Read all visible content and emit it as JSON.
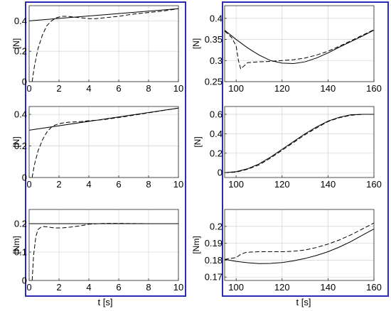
{
  "colors": {
    "frame": "#2b2bb8",
    "line": "#000000",
    "grid": "#d9d9d9",
    "axes_bg": "#ffffff"
  },
  "chart_data": [
    {
      "type": "line",
      "panel": "left-1",
      "xlabel": "",
      "ylabel": "[N]",
      "xlim": [
        0,
        10
      ],
      "ylim": [
        0,
        0.5
      ],
      "xticks": [
        0,
        2,
        4,
        6,
        8,
        10
      ],
      "yticks": [
        0,
        0.2,
        0.4
      ],
      "grid": true,
      "series": [
        {
          "style": "solid",
          "x": [
            0,
            10
          ],
          "y": [
            0.4,
            0.48
          ]
        },
        {
          "style": "dashed",
          "x": [
            0.2,
            0.35,
            0.6,
            0.9,
            1.2,
            1.5,
            1.8,
            2.2,
            2.6,
            3.0,
            3.5,
            4.0,
            4.5,
            5.0,
            6.0,
            7.0,
            8.0,
            9.0,
            10.0
          ],
          "y": [
            0.0,
            0.1,
            0.22,
            0.31,
            0.37,
            0.4,
            0.42,
            0.43,
            0.43,
            0.425,
            0.42,
            0.415,
            0.415,
            0.42,
            0.43,
            0.445,
            0.455,
            0.465,
            0.48
          ]
        }
      ]
    },
    {
      "type": "line",
      "panel": "right-1",
      "xlabel": "",
      "ylabel": "[N]",
      "xlim": [
        95,
        160
      ],
      "ylim": [
        0.25,
        0.43
      ],
      "xticks": [
        100,
        120,
        140,
        160
      ],
      "yticks": [
        0.25,
        0.3,
        0.35,
        0.4
      ],
      "grid": true,
      "series": [
        {
          "style": "solid",
          "x": [
            95,
            100,
            105,
            110,
            115,
            120,
            125,
            130,
            135,
            140,
            145,
            150,
            155,
            160
          ],
          "y": [
            0.372,
            0.35,
            0.33,
            0.313,
            0.3,
            0.294,
            0.293,
            0.297,
            0.306,
            0.318,
            0.332,
            0.345,
            0.358,
            0.372
          ]
        },
        {
          "style": "dashed",
          "x": [
            95,
            98,
            100,
            101,
            102,
            103,
            105,
            110,
            115,
            120,
            125,
            130,
            135,
            140,
            145,
            150,
            155,
            160
          ],
          "y": [
            0.37,
            0.355,
            0.335,
            0.3,
            0.28,
            0.285,
            0.295,
            0.297,
            0.298,
            0.3,
            0.302,
            0.306,
            0.313,
            0.322,
            0.334,
            0.347,
            0.36,
            0.373
          ]
        }
      ]
    },
    {
      "type": "line",
      "panel": "left-2",
      "xlabel": "",
      "ylabel": "[N]",
      "xlim": [
        0,
        10
      ],
      "ylim": [
        0,
        0.45
      ],
      "xticks": [
        0,
        2,
        4,
        6,
        8,
        10
      ],
      "yticks": [
        0,
        0.2,
        0.4
      ],
      "grid": true,
      "series": [
        {
          "style": "solid",
          "x": [
            0,
            10
          ],
          "y": [
            0.3,
            0.44
          ]
        },
        {
          "style": "dashed",
          "x": [
            0.2,
            0.35,
            0.6,
            0.9,
            1.2,
            1.5,
            1.8,
            2.2,
            2.6,
            3.0,
            3.5,
            4.0,
            4.5,
            5.0,
            6.0,
            7.0,
            8.0,
            9.0,
            10.0
          ],
          "y": [
            0.0,
            0.08,
            0.17,
            0.24,
            0.29,
            0.32,
            0.335,
            0.345,
            0.35,
            0.352,
            0.355,
            0.36,
            0.363,
            0.367,
            0.38,
            0.395,
            0.41,
            0.425,
            0.44
          ]
        }
      ]
    },
    {
      "type": "line",
      "panel": "right-2",
      "xlabel": "",
      "ylabel": "[N]",
      "xlim": [
        95,
        160
      ],
      "ylim": [
        -0.05,
        0.68
      ],
      "xticks": [
        100,
        120,
        140,
        160
      ],
      "yticks": [
        0,
        0.2,
        0.4,
        0.6
      ],
      "grid": true,
      "series": [
        {
          "style": "solid",
          "x": [
            95,
            100,
            105,
            110,
            115,
            120,
            125,
            130,
            135,
            140,
            145,
            150,
            155,
            160
          ],
          "y": [
            0.0,
            0.01,
            0.04,
            0.09,
            0.16,
            0.24,
            0.32,
            0.4,
            0.47,
            0.53,
            0.57,
            0.595,
            0.6,
            0.6
          ]
        },
        {
          "style": "dashed",
          "x": [
            95,
            100,
            105,
            110,
            115,
            120,
            125,
            130,
            135,
            140,
            145,
            150,
            155,
            160
          ],
          "y": [
            0.0,
            0.005,
            0.035,
            0.08,
            0.15,
            0.23,
            0.31,
            0.39,
            0.46,
            0.525,
            0.565,
            0.59,
            0.6,
            0.6
          ]
        }
      ]
    },
    {
      "type": "line",
      "panel": "left-3",
      "xlabel": "t [s]",
      "ylabel": "[Nm]",
      "xlim": [
        0,
        10
      ],
      "ylim": [
        0,
        0.25
      ],
      "xticks": [
        0,
        2,
        4,
        6,
        8,
        10
      ],
      "yticks": [
        0,
        0.1,
        0.2
      ],
      "grid": true,
      "series": [
        {
          "style": "solid",
          "x": [
            0,
            10
          ],
          "y": [
            0.2,
            0.2
          ]
        },
        {
          "style": "dashed",
          "x": [
            0.2,
            0.3,
            0.45,
            0.6,
            0.8,
            1.0,
            1.3,
            1.7,
            2.2,
            2.8,
            3.5,
            4.0,
            5.0,
            6.0,
            8.0,
            10.0
          ],
          "y": [
            0.0,
            0.09,
            0.155,
            0.18,
            0.188,
            0.19,
            0.188,
            0.185,
            0.185,
            0.188,
            0.193,
            0.198,
            0.201,
            0.201,
            0.2,
            0.2
          ]
        }
      ]
    },
    {
      "type": "line",
      "panel": "right-3",
      "xlabel": "t [s]",
      "ylabel": "[Nm]",
      "xlim": [
        95,
        160
      ],
      "ylim": [
        0.168,
        0.21
      ],
      "xticks": [
        100,
        120,
        140,
        160
      ],
      "yticks": [
        0.17,
        0.18,
        0.19,
        0.2
      ],
      "grid": true,
      "series": [
        {
          "style": "solid",
          "x": [
            95,
            100,
            105,
            110,
            115,
            120,
            125,
            130,
            135,
            140,
            145,
            150,
            155,
            160
          ],
          "y": [
            0.1805,
            0.1793,
            0.1785,
            0.178,
            0.1781,
            0.1786,
            0.1796,
            0.181,
            0.1828,
            0.185,
            0.1878,
            0.191,
            0.1948,
            0.1985
          ]
        },
        {
          "style": "dashed",
          "x": [
            95,
            100,
            102,
            104,
            106,
            110,
            115,
            120,
            125,
            130,
            135,
            140,
            145,
            150,
            155,
            160
          ],
          "y": [
            0.1805,
            0.1815,
            0.1835,
            0.1845,
            0.1848,
            0.185,
            0.185,
            0.185,
            0.1853,
            0.186,
            0.1875,
            0.1895,
            0.192,
            0.195,
            0.1985,
            0.202
          ]
        }
      ]
    }
  ]
}
